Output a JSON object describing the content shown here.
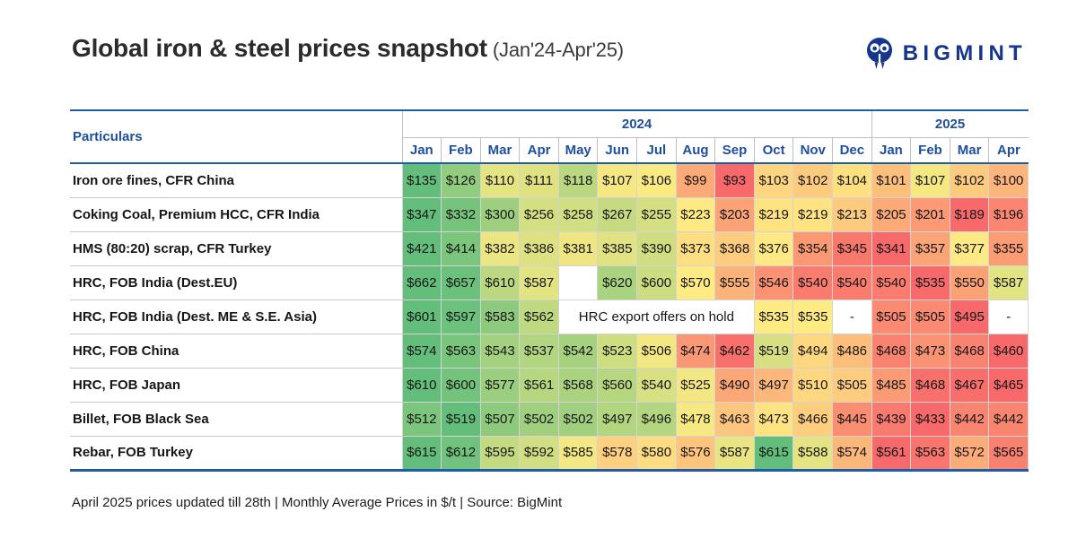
{
  "title": "Global iron & steel prices snapshot",
  "title_suffix": "(Jan'24-Apr'25)",
  "logo": {
    "text": "BIGMINT"
  },
  "footer": "April 2025 prices updated till 28th | Monthly Average Prices in $/t | Source: BigMint",
  "colors": {
    "accent_blue": "#1e5ca8",
    "header_text": "#1d4f9e",
    "logo_navy": "#16368c",
    "scale_min": "#F8696B",
    "scale_mid": "#FFEB84",
    "scale_max": "#63BE7B"
  },
  "table": {
    "particulars_label": "Particulars",
    "year_groups": [
      {
        "label": "2024",
        "months": [
          "Jan",
          "Feb",
          "Mar",
          "Apr",
          "May",
          "Jun",
          "Jul",
          "Aug",
          "Sep",
          "Oct",
          "Nov",
          "Dec"
        ]
      },
      {
        "label": "2025",
        "months": [
          "Jan",
          "Feb",
          "Mar",
          "Apr"
        ]
      }
    ],
    "rows": [
      {
        "label": "Iron ore fines, CFR China",
        "cells": [
          "$135",
          "$126",
          "$110",
          "$111",
          "$118",
          "$107",
          "$106",
          "$99",
          "$93",
          "$103",
          "$102",
          "$104",
          "$101",
          "$107",
          "$102",
          "$100"
        ]
      },
      {
        "label": "Coking Coal, Premium HCC, CFR India",
        "cells": [
          "$347",
          "$332",
          "$300",
          "$256",
          "$258",
          "$267",
          "$255",
          "$223",
          "$203",
          "$219",
          "$219",
          "$213",
          "$205",
          "$201",
          "$189",
          "$196"
        ]
      },
      {
        "label": "HMS (80:20) scrap, CFR Turkey",
        "cells": [
          "$421",
          "$414",
          "$382",
          "$386",
          "$381",
          "$385",
          "$390",
          "$373",
          "$368",
          "$376",
          "$354",
          "$345",
          "$341",
          "$357",
          "$377",
          "$355"
        ]
      },
      {
        "label": "HRC, FOB India (Dest.EU)",
        "cells": [
          "$662",
          "$657",
          "$610",
          "$587",
          "",
          "$620",
          "$600",
          "$570",
          "$555",
          "$546",
          "$540",
          "$540",
          "$540",
          "$535",
          "$550",
          "$587"
        ]
      },
      {
        "label": "HRC, FOB India (Dest. ME & S.E. Asia)",
        "cells": [
          "$601",
          "$597",
          "$583",
          "$562",
          {
            "span": 5,
            "text": "HRC export offers on hold"
          },
          "$535",
          "$535",
          "-",
          "$505",
          "$505",
          "$495",
          "-"
        ]
      },
      {
        "label": "HRC, FOB China",
        "cells": [
          "$574",
          "$563",
          "$543",
          "$537",
          "$542",
          "$523",
          "$506",
          "$474",
          "$462",
          "$519",
          "$494",
          "$486",
          "$468",
          "$473",
          "$468",
          "$460"
        ]
      },
      {
        "label": "HRC, FOB Japan",
        "cells": [
          "$610",
          "$600",
          "$577",
          "$561",
          "$568",
          "$560",
          "$540",
          "$525",
          "$490",
          "$497",
          "$510",
          "$505",
          "$485",
          "$468",
          "$467",
          "$465"
        ]
      },
      {
        "label": "Billet, FOB Black Sea",
        "cells": [
          "$512",
          "$519",
          "$507",
          "$502",
          "$502",
          "$497",
          "$496",
          "$478",
          "$463",
          "$473",
          "$466",
          "$445",
          "$439",
          "$433",
          "$442",
          "$442"
        ]
      },
      {
        "label": "Rebar, FOB Turkey",
        "cells": [
          "$615",
          "$612",
          "$595",
          "$592",
          "$585",
          "$578",
          "$580",
          "$576",
          "$587",
          "$615",
          "$588",
          "$574",
          "$561",
          "$563",
          "$572",
          "$565"
        ]
      }
    ]
  },
  "chart_data": {
    "type": "heatmap",
    "title": "Global iron & steel prices snapshot (Jan'24-Apr'25)",
    "unit": "$/t",
    "note": "April 2025 prices updated till 28th | Monthly Average Prices in $/t | Source: BigMint",
    "columns": [
      "Jan'24",
      "Feb'24",
      "Mar'24",
      "Apr'24",
      "May'24",
      "Jun'24",
      "Jul'24",
      "Aug'24",
      "Sep'24",
      "Oct'24",
      "Nov'24",
      "Dec'24",
      "Jan'25",
      "Feb'25",
      "Mar'25",
      "Apr'25"
    ],
    "series": [
      {
        "name": "Iron ore fines, CFR China",
        "values": [
          135,
          126,
          110,
          111,
          118,
          107,
          106,
          99,
          93,
          103,
          102,
          104,
          101,
          107,
          102,
          100
        ]
      },
      {
        "name": "Coking Coal, Premium HCC, CFR India",
        "values": [
          347,
          332,
          300,
          256,
          258,
          267,
          255,
          223,
          203,
          219,
          219,
          213,
          205,
          201,
          189,
          196
        ]
      },
      {
        "name": "HMS (80:20) scrap, CFR Turkey",
        "values": [
          421,
          414,
          382,
          386,
          381,
          385,
          390,
          373,
          368,
          376,
          354,
          345,
          341,
          357,
          377,
          355
        ]
      },
      {
        "name": "HRC, FOB India (Dest.EU)",
        "values": [
          662,
          657,
          610,
          587,
          null,
          620,
          600,
          570,
          555,
          546,
          540,
          540,
          540,
          535,
          550,
          587
        ]
      },
      {
        "name": "HRC, FOB India (Dest. ME & S.E. Asia)",
        "values": [
          601,
          597,
          583,
          562,
          null,
          null,
          null,
          null,
          null,
          535,
          535,
          null,
          505,
          505,
          495,
          null
        ],
        "annotation": "HRC export offers on hold (May'24-Sep'24)"
      },
      {
        "name": "HRC, FOB China",
        "values": [
          574,
          563,
          543,
          537,
          542,
          523,
          506,
          474,
          462,
          519,
          494,
          486,
          468,
          473,
          468,
          460
        ]
      },
      {
        "name": "HRC, FOB Japan",
        "values": [
          610,
          600,
          577,
          561,
          568,
          560,
          540,
          525,
          490,
          497,
          510,
          505,
          485,
          468,
          467,
          465
        ]
      },
      {
        "name": "Billet, FOB Black Sea",
        "values": [
          512,
          519,
          507,
          502,
          502,
          497,
          496,
          478,
          463,
          473,
          466,
          445,
          439,
          433,
          442,
          442
        ]
      },
      {
        "name": "Rebar, FOB Turkey",
        "values": [
          615,
          612,
          595,
          592,
          585,
          578,
          580,
          576,
          587,
          615,
          588,
          574,
          561,
          563,
          572,
          565
        ]
      }
    ],
    "color_scale": {
      "min_color": "#F8696B",
      "mid_color": "#FFEB84",
      "max_color": "#63BE7B",
      "scaled_per_row": true
    },
    "legend_position": "none",
    "grid": true
  }
}
